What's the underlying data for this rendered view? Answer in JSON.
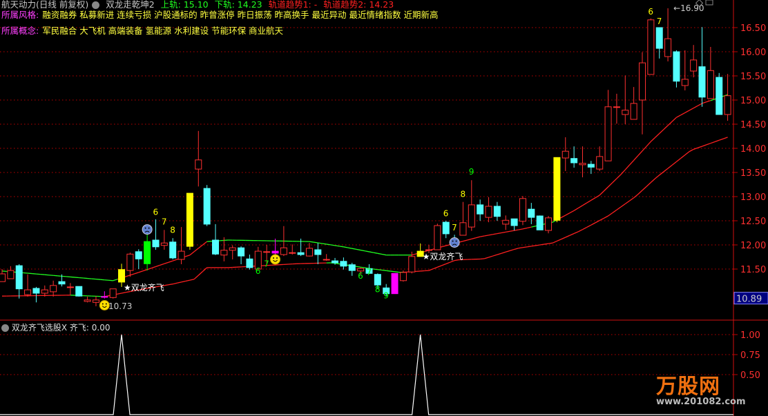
{
  "header": {
    "stock": "航天动力(日线 前复权)",
    "indicator": "双龙走乾坤2",
    "upper": "上轨: 15.10",
    "lower": "下轨: 14.23",
    "trend1": "轨道趋势1: -",
    "trend2": "轨道趋势2: 14.23",
    "style_label": "所属风格:",
    "style_items": "融资融券 私募新进 连续亏损 沪股通标的 昨曾涨停 昨日振荡 昨高换手 最近异动 最近情绪指数 近期新高",
    "concept_label": "所属概念:",
    "concept_items": "军民融合 大飞机 高端装备 氢能源 水利建设 节能环保 商业航天"
  },
  "sub_panel": {
    "title": "双龙齐飞选股X",
    "value_text": "齐飞: 0.00"
  },
  "logo": {
    "text": "万股网",
    "url": "www.201082.com"
  },
  "colors": {
    "up": "#ff3030",
    "down": "#54ffff",
    "grid": "#c00000",
    "axis_text": "#ff3030",
    "band_green": "#20ff20",
    "band_red": "#ff2020",
    "signal_yellow": "#ffff00",
    "signal_magenta": "#ff00ff",
    "signal_green": "#00ff00"
  },
  "chart_data": [
    {
      "type": "candlestick",
      "ylim": [
        10.7,
        16.95
      ],
      "yticks": [
        "16.50",
        "16.00",
        "15.50",
        "15.00",
        "14.50",
        "14.00",
        "13.50",
        "13.00",
        "12.50",
        "12.00",
        "11.50"
      ],
      "current_price_label": "10.89",
      "grid": true,
      "ohlc": [
        [
          11.24,
          11.5,
          11.24,
          11.4
        ],
        [
          11.3,
          11.56,
          11.3,
          11.47
        ],
        [
          11.57,
          11.6,
          10.89,
          11.09
        ],
        [
          10.97,
          11.39,
          10.93,
          11.07
        ],
        [
          11.1,
          11.13,
          10.81,
          11.0
        ],
        [
          11.0,
          11.16,
          10.93,
          11.07
        ],
        [
          11.03,
          11.26,
          10.93,
          11.16
        ],
        [
          11.24,
          11.39,
          11.14,
          11.19
        ],
        [
          11.13,
          11.21,
          10.97,
          11.13
        ],
        [
          11.14,
          11.14,
          10.93,
          10.94
        ],
        [
          10.83,
          10.93,
          10.81,
          10.86
        ],
        [
          10.81,
          10.94,
          10.73,
          10.86
        ],
        [
          10.93,
          11.04,
          10.89,
          10.93
        ],
        [
          10.91,
          11.09,
          10.89,
          11.09
        ],
        [
          11.23,
          11.61,
          11.13,
          11.49
        ],
        [
          11.47,
          11.84,
          11.34,
          11.81
        ],
        [
          11.86,
          11.91,
          11.5,
          11.71
        ],
        [
          12.07,
          12.31,
          11.47,
          11.61
        ],
        [
          12.1,
          12.53,
          11.9,
          11.96
        ],
        [
          11.99,
          12.31,
          11.9,
          12.04
        ],
        [
          12.06,
          12.14,
          11.7,
          11.73
        ],
        [
          11.7,
          12.37,
          11.6,
          11.87
        ],
        [
          11.97,
          13.07,
          11.9,
          13.07
        ],
        [
          13.57,
          14.36,
          13.21,
          13.76
        ],
        [
          13.17,
          13.24,
          12.39,
          12.43
        ],
        [
          12.1,
          12.43,
          11.79,
          11.81
        ],
        [
          11.79,
          12.16,
          11.66,
          11.89
        ],
        [
          11.89,
          11.99,
          11.7,
          11.94
        ],
        [
          11.94,
          11.97,
          11.6,
          11.77
        ],
        [
          11.71,
          11.8,
          11.49,
          11.53
        ],
        [
          11.5,
          11.96,
          11.49,
          11.87
        ],
        [
          11.86,
          12.0,
          11.61,
          11.86
        ],
        [
          11.87,
          12.13,
          11.79,
          11.83
        ],
        [
          11.8,
          12.39,
          11.77,
          11.94
        ],
        [
          11.84,
          12.01,
          11.8,
          11.84
        ],
        [
          11.84,
          12.13,
          11.77,
          11.8
        ],
        [
          11.77,
          12.04,
          11.76,
          11.93
        ],
        [
          11.9,
          12.04,
          11.6,
          11.8
        ],
        [
          11.7,
          11.81,
          11.67,
          11.7
        ],
        [
          11.67,
          11.73,
          11.59,
          11.63
        ],
        [
          11.66,
          11.74,
          11.49,
          11.56
        ],
        [
          11.59,
          11.63,
          11.36,
          11.47
        ],
        [
          11.46,
          11.53,
          11.39,
          11.51
        ],
        [
          11.51,
          11.6,
          11.41,
          11.41
        ],
        [
          11.39,
          11.41,
          11.1,
          11.17
        ],
        [
          11.11,
          11.19,
          10.93,
          10.99
        ],
        [
          11.41,
          11.41,
          10.99,
          10.99
        ],
        [
          11.26,
          11.47,
          11.24,
          11.43
        ],
        [
          11.44,
          11.86,
          11.41,
          11.76
        ],
        [
          11.76,
          12.03,
          11.76,
          11.87
        ],
        [
          11.89,
          12.0,
          11.83,
          11.9
        ],
        [
          11.9,
          12.44,
          11.9,
          12.4
        ],
        [
          12.47,
          12.5,
          12.14,
          12.23
        ],
        [
          12.04,
          12.21,
          12.0,
          12.01
        ],
        [
          12.2,
          12.89,
          12.2,
          12.46
        ],
        [
          12.37,
          13.34,
          12.29,
          12.83
        ],
        [
          12.83,
          12.94,
          12.5,
          12.64
        ],
        [
          12.57,
          12.99,
          12.47,
          12.8
        ],
        [
          12.8,
          12.89,
          12.5,
          12.59
        ],
        [
          12.43,
          12.61,
          12.31,
          12.51
        ],
        [
          12.54,
          12.54,
          12.3,
          12.4
        ],
        [
          12.49,
          13.01,
          12.41,
          12.96
        ],
        [
          12.74,
          12.87,
          12.43,
          12.57
        ],
        [
          12.6,
          12.61,
          12.31,
          12.31
        ],
        [
          12.3,
          12.6,
          12.24,
          12.56
        ],
        [
          12.51,
          13.81,
          12.47,
          13.81
        ],
        [
          13.8,
          14.23,
          13.53,
          13.94
        ],
        [
          13.79,
          14.04,
          13.6,
          13.7
        ],
        [
          13.66,
          14.04,
          13.4,
          13.69
        ],
        [
          13.67,
          13.74,
          13.47,
          13.61
        ],
        [
          13.57,
          14.04,
          13.53,
          13.83
        ],
        [
          13.74,
          15.21,
          13.74,
          14.86
        ],
        [
          14.86,
          15.13,
          14.51,
          14.86
        ],
        [
          14.7,
          15.51,
          14.5,
          14.79
        ],
        [
          14.6,
          15.27,
          14.6,
          14.93
        ],
        [
          15.0,
          15.99,
          14.29,
          15.77
        ],
        [
          15.53,
          16.69,
          15.53,
          16.66
        ],
        [
          16.5,
          16.5,
          15.86,
          16.07
        ],
        [
          15.9,
          16.9,
          15.8,
          16.27
        ],
        [
          16.0,
          16.03,
          15.26,
          15.39
        ],
        [
          15.3,
          16.03,
          15.2,
          15.43
        ],
        [
          15.6,
          16.14,
          15.47,
          15.83
        ],
        [
          15.69,
          16.51,
          14.86,
          15.06
        ],
        [
          15.03,
          16.1,
          15.03,
          15.61
        ],
        [
          15.47,
          15.56,
          14.7,
          14.7
        ],
        [
          14.7,
          15.54,
          14.57,
          15.09
        ]
      ],
      "highlight_candles": {
        "12": "magenta",
        "14": "yellow",
        "17": "green",
        "22": "yellow",
        "32": "magenta",
        "46": "magenta",
        "49": "yellow",
        "65": "yellow"
      },
      "bands": [
        {
          "name": "上轨",
          "last": 15.1,
          "points": [
            [
              0,
              11.46
            ],
            [
              13,
              11.26
            ],
            [
              16,
              11.43
            ],
            [
              19,
              11.61
            ],
            [
              22,
              11.79
            ],
            [
              24,
              12.07
            ],
            [
              26.5,
              12.1
            ],
            [
              36,
              12.07
            ],
            [
              40,
              11.96
            ],
            [
              45,
              11.79
            ],
            [
              48,
              11.79
            ],
            [
              51.5,
              11.96
            ],
            [
              56,
              12.17
            ],
            [
              61,
              12.33
            ],
            [
              64.5,
              12.47
            ],
            [
              67,
              12.71
            ],
            [
              70,
              13.03
            ],
            [
              72.5,
              13.46
            ],
            [
              76,
              14.14
            ],
            [
              79,
              14.64
            ],
            [
              82,
              14.93
            ],
            [
              85,
              15.11
            ]
          ],
          "green_ranges": [
            [
              0,
              13.5
            ],
            [
              24,
              48
            ],
            [
              62,
              65
            ],
            [
              83,
              85
            ]
          ]
        },
        {
          "name": "下轨",
          "last": 14.23,
          "points": [
            [
              0,
              10.94
            ],
            [
              8,
              10.96
            ],
            [
              12,
              10.93
            ],
            [
              16,
              11.07
            ],
            [
              20,
              11.19
            ],
            [
              22.5,
              11.29
            ],
            [
              24,
              11.53
            ],
            [
              26.5,
              11.53
            ],
            [
              34.5,
              11.61
            ],
            [
              38.6,
              11.63
            ],
            [
              43.5,
              11.5
            ],
            [
              46.7,
              11.43
            ],
            [
              50,
              11.47
            ],
            [
              53.2,
              11.69
            ],
            [
              56.4,
              11.71
            ],
            [
              60.4,
              11.93
            ],
            [
              64.5,
              12.04
            ],
            [
              67.7,
              12.29
            ],
            [
              71,
              12.6
            ],
            [
              74.2,
              13.0
            ],
            [
              76.6,
              13.39
            ],
            [
              80.7,
              13.96
            ],
            [
              85,
              14.23
            ]
          ],
          "green_ranges": [
            [
              8,
              12
            ],
            [
              38,
              47
            ]
          ]
        }
      ],
      "annotations": [
        {
          "text": "6",
          "i": 18,
          "price": 12.62,
          "color": "#ffff00"
        },
        {
          "text": "7",
          "i": 19,
          "price": 12.42,
          "color": "#ffff00"
        },
        {
          "text": "8",
          "i": 20,
          "price": 12.25,
          "color": "#ffff00"
        },
        {
          "text": "6",
          "i": 30,
          "price": 11.4,
          "color": "#00ff00"
        },
        {
          "text": "7",
          "i": 31,
          "price": 11.55,
          "color": "#00ff00"
        },
        {
          "text": "6",
          "i": 42,
          "price": 11.3,
          "color": "#00ff00"
        },
        {
          "text": "7",
          "i": 43,
          "price": 11.38,
          "color": "#00ff00"
        },
        {
          "text": "8",
          "i": 44,
          "price": 11.02,
          "color": "#00ff00"
        },
        {
          "text": "9",
          "i": 45,
          "price": 10.89,
          "color": "#00ff00"
        },
        {
          "text": "6",
          "i": 52,
          "price": 12.59,
          "color": "#ffff00"
        },
        {
          "text": "7",
          "i": 53,
          "price": 12.3,
          "color": "#ffff00"
        },
        {
          "text": "8",
          "i": 54,
          "price": 12.99,
          "color": "#ffff00"
        },
        {
          "text": "9",
          "i": 55,
          "price": 13.46,
          "color": "#00ff00"
        },
        {
          "text": "6",
          "i": 76,
          "price": 16.77,
          "color": "#ffff00"
        },
        {
          "text": "7",
          "i": 77,
          "price": 16.57,
          "color": "#ffff00"
        }
      ],
      "signals": [
        {
          "text": "★双龙齐飞",
          "i": 14,
          "price": 11.06
        },
        {
          "text": "★双龙齐飞",
          "i": 49,
          "price": 11.7
        }
      ],
      "high_label": {
        "text": "16.90",
        "i": 78,
        "price": 16.9
      },
      "low_label": {
        "text": "10.73",
        "i": 11,
        "price": 10.73
      },
      "smileys": [
        {
          "i": 12,
          "price": 10.75,
          "kind": "happy"
        },
        {
          "i": 32,
          "price": 11.7,
          "kind": "happy"
        },
        {
          "i": 17,
          "price": 12.32,
          "kind": "sad"
        },
        {
          "i": 53,
          "price": 12.05,
          "kind": "sad"
        }
      ]
    },
    {
      "type": "line",
      "ylim": [
        0,
        1.0
      ],
      "yticks": [
        "1.00",
        "0.75",
        "0.50"
      ],
      "signal_candles": [
        14,
        49
      ],
      "values_note_free": true
    }
  ]
}
